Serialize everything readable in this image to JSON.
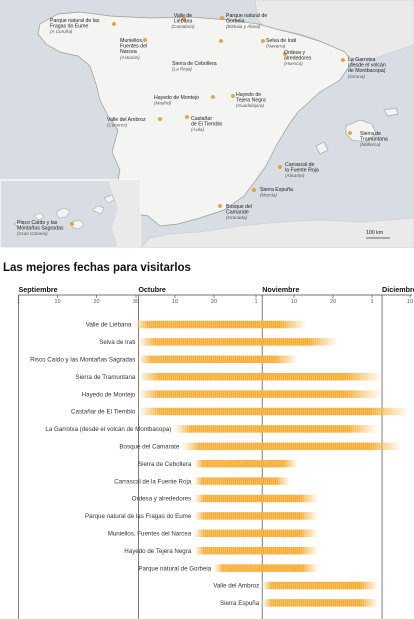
{
  "map": {
    "scale_label": "100 km",
    "places": [
      {
        "name": "Parque natural de las Fragas do Eume",
        "region": "(A Coruña)"
      },
      {
        "name": "Valle de Liébana",
        "region": "(Cantabria)"
      },
      {
        "name": "Parque natural de Gorbeia",
        "region": "(Bizkaia y Álava)"
      },
      {
        "name": "Muniellos, Fuentes del Narcea",
        "region": "(Asturias)"
      },
      {
        "name": "Sierra de Cebollera",
        "region": "(La Rioja)"
      },
      {
        "name": "Selva de Irati",
        "region": "(Navarra)"
      },
      {
        "name": "Ordesa y alrededores",
        "region": "(Huesca)"
      },
      {
        "name": "La Garrotxa (desde el volcán de Montbacopa)",
        "region": "(Girona)"
      },
      {
        "name": "Hayedo de Montejo",
        "region": "(Madrid)"
      },
      {
        "name": "Hayedo de Tejera Negra",
        "region": "(Guadalajara)"
      },
      {
        "name": "Valle del Ambroz",
        "region": "(Cáceres)"
      },
      {
        "name": "Castañar de El Tiemblo",
        "region": "(Ávila)"
      },
      {
        "name": "Sierra de Tramuntana",
        "region": "(Mallorca)"
      },
      {
        "name": "Carrascal de la Fuente Roja",
        "region": "(Alicante)"
      },
      {
        "name": "Sierra Espuña",
        "region": "(Murcia)"
      },
      {
        "name": "Bosque del Camarate",
        "region": "(Granada)"
      },
      {
        "name": "Risco Caído y las Montañas Sagradas",
        "region": "(Gran Canaria)"
      }
    ]
  },
  "chart_title": "Las mejores fechas para visitarlos",
  "chart_data": {
    "type": "bar",
    "subtype": "horizontal date range (gantt)",
    "bar_color": "#f5a623",
    "x_axis": {
      "months": [
        {
          "label": "Septiembre",
          "start": "Sep 1"
        },
        {
          "label": "Octubre",
          "start": "Oct 1"
        },
        {
          "label": "Noviembre",
          "start": "Nov 1"
        },
        {
          "label": "Diciembre",
          "start": "Dec 1"
        }
      ],
      "tick_labels": [
        "1",
        "10",
        "20",
        "30",
        "10",
        "20",
        "1",
        "10",
        "20",
        "1",
        "10",
        "20",
        "1",
        "8"
      ]
    },
    "series": [
      {
        "category": "Valle de Liébana",
        "start": "Sep 30",
        "end": "Nov 12"
      },
      {
        "category": "Selva de Irati",
        "start": "Oct 1",
        "end": "Nov 20"
      },
      {
        "category": "Risco Caído y las Montañas Sagradas",
        "start": "Oct 1",
        "end": "Nov 10"
      },
      {
        "category": "Sierra de Tramuntana",
        "start": "Oct 1",
        "end": "Dec 1"
      },
      {
        "category": "Hayedo de Montejo",
        "start": "Oct 1",
        "end": "Dec 1"
      },
      {
        "category": "Castañar de El Tiemblo",
        "start": "Oct 1",
        "end": "Dec 8"
      },
      {
        "category": "La Garrotxa (desde el volcán de Montbacopa)",
        "start": "Oct 10",
        "end": "Nov 30"
      },
      {
        "category": "Bosque del Camarate",
        "start": "Oct 12",
        "end": "Dec 6"
      },
      {
        "category": "Sierra de Cebollera",
        "start": "Oct 15",
        "end": "Nov 10"
      },
      {
        "category": "Carrascal de la Fuente Roja",
        "start": "Oct 15",
        "end": "Nov 8"
      },
      {
        "category": "Ordesa y alrededores",
        "start": "Oct 15",
        "end": "Nov 15"
      },
      {
        "category": "Parque natural de las Fragas do Eume",
        "start": "Oct 15",
        "end": "Nov 15"
      },
      {
        "category": "Muniellos, Fuentes del Narcea",
        "start": "Oct 15",
        "end": "Nov 15"
      },
      {
        "category": "Hayedo de Tejera Negra",
        "start": "Oct 15",
        "end": "Nov 15"
      },
      {
        "category": "Parque natural de Gorbeia",
        "start": "Oct 20",
        "end": "Nov 15"
      },
      {
        "category": "Valle del Ambroz",
        "start": "Nov 1",
        "end": "Nov 30"
      },
      {
        "category": "Sierra Espuña",
        "start": "Nov 1",
        "end": "Nov 30"
      }
    ]
  }
}
